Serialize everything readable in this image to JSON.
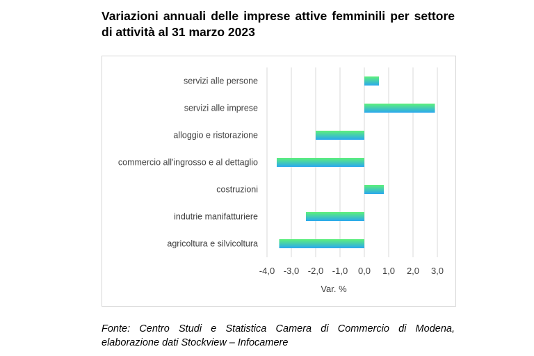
{
  "title": "Variazioni annuali delle imprese attive femminili per settore di attività al 31 marzo 2023",
  "source": "Fonte: Centro Studi e Statistica Camera di Commercio di Modena, elaborazione dati Stockview – Infocamere",
  "chart_data": {
    "type": "bar",
    "orientation": "horizontal",
    "categories": [
      "servizi alle persone",
      "servizi alle imprese",
      "alloggio e ristorazione",
      "commercio all'ingrosso e al dettaglio",
      "costruzioni",
      "indutrie manifatturiere",
      "agricoltura e silvicoltura"
    ],
    "values": [
      0.6,
      2.9,
      -2.0,
      -3.6,
      0.8,
      -2.4,
      -3.5
    ],
    "xlabel": "Var. %",
    "ylabel": "",
    "xlim": [
      -4.0,
      3.0
    ],
    "xticks": [
      "-4,0",
      "-3,0",
      "-2,0",
      "-1,0",
      "0,0",
      "1,0",
      "2,0",
      "3,0"
    ],
    "grid": "vertical",
    "colors": {
      "gradient_top": "#5ef07a",
      "gradient_bottom": "#2aa8ee",
      "grid": "#d9d9d9",
      "label": "#404040"
    }
  }
}
